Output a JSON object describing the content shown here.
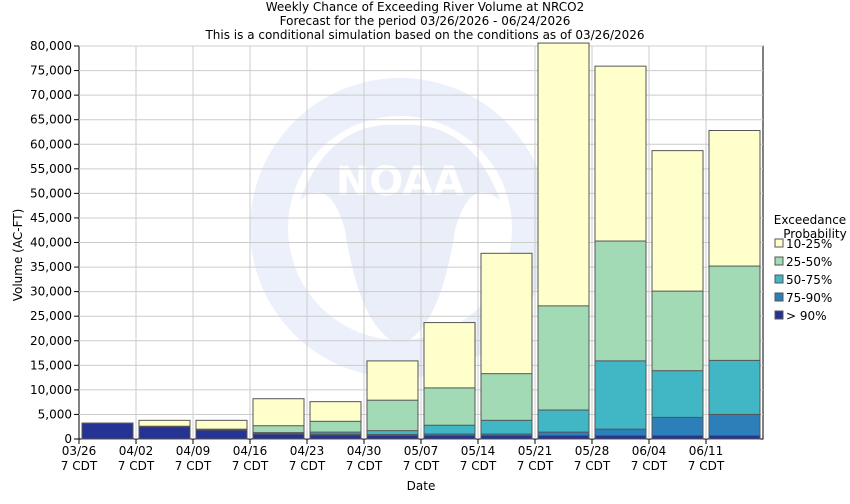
{
  "chart_data": {
    "type": "bar",
    "title_lines": [
      "Weekly Chance of Exceeding River Volume at NRCO2",
      "Forecast for the period 03/26/2026 - 06/24/2026",
      "This is a conditional simulation based on the conditions as of 03/26/2026"
    ],
    "xlabel": "Date",
    "ylabel": "Volume (AC-FT)",
    "ylim": [
      0,
      80000
    ],
    "yticks": [
      0,
      5000,
      10000,
      15000,
      20000,
      25000,
      30000,
      35000,
      40000,
      45000,
      50000,
      55000,
      60000,
      65000,
      70000,
      75000,
      80000
    ],
    "ytick_labels": [
      "0",
      "5,000",
      "10,000",
      "15,000",
      "20,000",
      "25,000",
      "30,000",
      "35,000",
      "40,000",
      "45,000",
      "50,000",
      "55,000",
      "60,000",
      "65,000",
      "70,000",
      "75,000",
      "80,000"
    ],
    "x_tick_labels": [
      [
        "03/26",
        "7 CDT"
      ],
      [
        "04/02",
        "7 CDT"
      ],
      [
        "04/09",
        "7 CDT"
      ],
      [
        "04/16",
        "7 CDT"
      ],
      [
        "04/23",
        "7 CDT"
      ],
      [
        "04/30",
        "7 CDT"
      ],
      [
        "05/07",
        "7 CDT"
      ],
      [
        "05/14",
        "7 CDT"
      ],
      [
        "05/21",
        "7 CDT"
      ],
      [
        "05/28",
        "7 CDT"
      ],
      [
        "06/04",
        "7 CDT"
      ],
      [
        "06/11",
        "7 CDT"
      ]
    ],
    "grid": true,
    "legend_title": [
      "Exceedance",
      "Probability"
    ],
    "legend_position": "right",
    "series": [
      {
        "name": "> 90%",
        "color": "#253494",
        "values": [
          3200,
          2500,
          1800,
          1000,
          800,
          700,
          700,
          700,
          700,
          700,
          700,
          700
        ]
      },
      {
        "name": "75-90%",
        "color": "#2c7fb8",
        "values": [
          3200,
          2500,
          1800,
          1100,
          1000,
          900,
          1000,
          1000,
          1400,
          2000,
          4400,
          5000
        ]
      },
      {
        "name": "50-75%",
        "color": "#41b6c4",
        "values": [
          3200,
          2500,
          1800,
          1300,
          1400,
          1700,
          2800,
          3800,
          5900,
          15900,
          13900,
          16000
        ]
      },
      {
        "name": "25-50%",
        "color": "#a1dab4",
        "values": [
          3200,
          2600,
          2000,
          2700,
          3600,
          7900,
          10400,
          13300,
          27100,
          40300,
          30100,
          35200
        ]
      },
      {
        "name": "10-25%",
        "color": "#ffffcc",
        "values": [
          3200,
          3800,
          3800,
          8200,
          7600,
          15900,
          23700,
          37800,
          80600,
          75900,
          58700,
          62800
        ]
      }
    ],
    "legend_order": [
      "10-25%",
      "25-50%",
      "50-75%",
      "75-90%",
      "> 90%"
    ]
  }
}
